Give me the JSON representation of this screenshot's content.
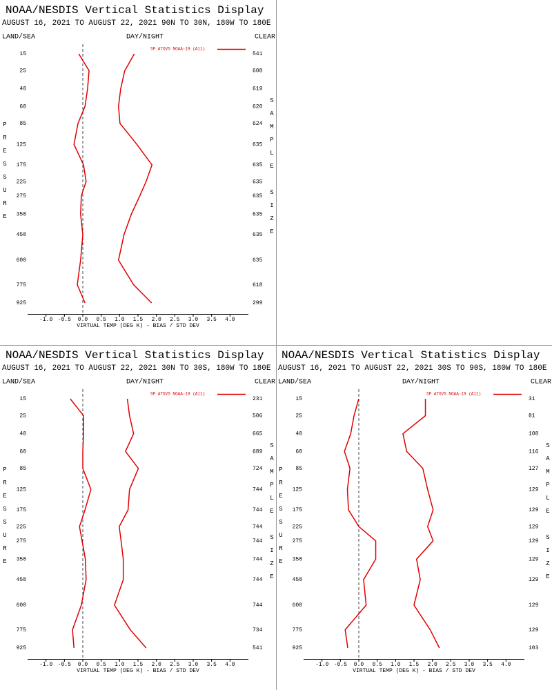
{
  "chart_data": [
    {
      "type": "line",
      "title": "NOAA/NESDIS Vertical Statistics Display",
      "subtitle": "AUGUST 16, 2021 TO AUGUST 22, 2021 90N TO 30N, 180W TO 180E",
      "land_sea": "LAND/SEA",
      "day_night": "DAY/NIGHT",
      "clear": "CLEAR",
      "y_label": "PRESSURE",
      "y2_label": "SAMPLE SIZE",
      "x_label": "VIRTUAL TEMP (DEG K) - BIAS / STD DEV",
      "categories": [
        15,
        25,
        40,
        60,
        85,
        125,
        175,
        225,
        275,
        350,
        450,
        600,
        775,
        925
      ],
      "series": [
        {
          "name": "SP ATOVS NOAA-19 (A11)",
          "color": "#e00000",
          "bias": [
            -0.11,
            0.17,
            0.13,
            0.06,
            -0.13,
            -0.24,
            0.02,
            0.09,
            -0.04,
            -0.06,
            0.0,
            -0.06,
            -0.15,
            0.06
          ],
          "std_dev": [
            1.4,
            1.14,
            1.03,
            0.97,
            1.01,
            1.47,
            1.88,
            1.72,
            1.55,
            1.32,
            1.12,
            0.97,
            1.38,
            1.87
          ]
        }
      ],
      "sample_size": [
        541,
        608,
        619,
        620,
        624,
        635,
        635,
        635,
        635,
        635,
        635,
        635,
        618,
        299
      ],
      "xlim": [
        -1.5,
        4.5
      ],
      "xticks": [
        {
          "value": -1,
          "label": "-1.0"
        },
        -0.5,
        {
          "value": 0,
          "label": "0.0"
        },
        0.5,
        {
          "value": 1,
          "label": "1.0"
        },
        1.5,
        {
          "value": 2,
          "label": "2.0"
        },
        2.5,
        {
          "value": 3,
          "label": "3.0"
        },
        3.5,
        {
          "value": 4,
          "label": "4.0"
        }
      ],
      "zero_line": true
    },
    {
      "type": "line",
      "title": "NOAA/NESDIS Vertical Statistics Display",
      "subtitle": "AUGUST 16, 2021 TO AUGUST 22, 2021 30N TO 30S, 180W TO 180E",
      "land_sea": "LAND/SEA",
      "day_night": "DAY/NIGHT",
      "clear": "CLEAR",
      "y_label": "PRESSURE",
      "y2_label": "SAMPLE SIZE",
      "x_label": "VIRTUAL TEMP (DEG K) - BIAS / STD DEV",
      "categories": [
        15,
        25,
        40,
        60,
        85,
        125,
        175,
        225,
        275,
        350,
        450,
        600,
        775,
        925
      ],
      "series": [
        {
          "name": "SP ATOVS NOAA-19 (A11)",
          "color": "#e00000",
          "bias": [
            -0.34,
            0.02,
            0.02,
            0.0,
            0.0,
            0.22,
            0.06,
            -0.09,
            -0.02,
            0.07,
            0.09,
            -0.04,
            -0.28,
            -0.24
          ],
          "std_dev": [
            1.21,
            1.27,
            1.38,
            1.16,
            1.51,
            1.27,
            1.23,
            0.99,
            1.04,
            1.1,
            1.1,
            0.86,
            1.29,
            1.72
          ]
        }
      ],
      "sample_size": [
        231,
        506,
        665,
        689,
        724,
        744,
        744,
        744,
        744,
        744,
        744,
        744,
        734,
        541
      ],
      "xlim": [
        -1.5,
        4.5
      ],
      "xticks": [
        {
          "value": -1,
          "label": "-1.0"
        },
        -0.5,
        {
          "value": 0,
          "label": "0.0"
        },
        0.5,
        {
          "value": 1,
          "label": "1.0"
        },
        1.5,
        {
          "value": 2,
          "label": "2.0"
        },
        2.5,
        {
          "value": 3,
          "label": "3.0"
        },
        3.5,
        {
          "value": 4,
          "label": "4.0"
        }
      ],
      "zero_line": true
    },
    {
      "type": "line",
      "title": "NOAA/NESDIS Vertical Statistics Display",
      "subtitle": "AUGUST 16, 2021 TO AUGUST 22, 2021 30S TO 90S, 180W TO 180E",
      "land_sea": "LAND/SEA",
      "day_night": "DAY/NIGHT",
      "clear": "CLEAR",
      "y_label": "PRESSURE",
      "y2_label": "SAMPLE SIZE",
      "x_label": "VIRTUAL TEMP (DEG K) - BIAS / STD DEV",
      "categories": [
        15,
        25,
        40,
        60,
        85,
        125,
        175,
        225,
        275,
        350,
        450,
        600,
        775,
        925
      ],
      "series": [
        {
          "name": "SP ATOVS NOAA-19 (A11)",
          "color": "#e00000",
          "bias": [
            0.0,
            -0.13,
            -0.22,
            -0.39,
            -0.24,
            -0.31,
            -0.28,
            0.0,
            0.46,
            0.46,
            0.13,
            0.2,
            -0.37,
            -0.3
          ],
          "std_dev": [
            1.81,
            1.81,
            1.2,
            1.3,
            1.74,
            1.87,
            2.02,
            1.87,
            2.02,
            1.57,
            1.67,
            1.5,
            1.94,
            2.19
          ]
        }
      ],
      "sample_size": [
        31,
        81,
        108,
        116,
        127,
        129,
        129,
        129,
        129,
        129,
        129,
        129,
        129,
        103
      ],
      "xlim": [
        -1.5,
        4.5
      ],
      "xticks": [
        {
          "value": -1,
          "label": "-1.0"
        },
        -0.5,
        {
          "value": 0,
          "label": "0.0"
        },
        0.5,
        {
          "value": 1,
          "label": "1.0"
        },
        1.5,
        {
          "value": 2,
          "label": "2.0"
        },
        2.5,
        {
          "value": 3,
          "label": "3.0"
        },
        3.5,
        {
          "value": 4,
          "label": "4.0"
        }
      ],
      "zero_line": true
    }
  ]
}
